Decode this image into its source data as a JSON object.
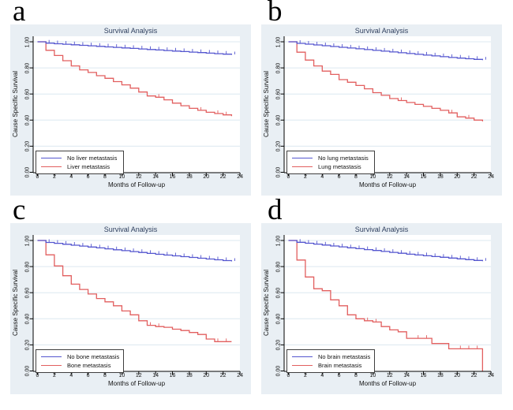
{
  "colors": {
    "panel_background": "#e9eff4",
    "plot_background": "#ffffff",
    "gridline": "#dce8f0",
    "axis": "#000000",
    "title_text": "#2e3f5e",
    "tick_text": "#111111",
    "blue_line": "#5456cf",
    "red_line": "#e25f5f",
    "legend_border": "#3f3f3f"
  },
  "chart_data": [
    {
      "type": "line",
      "panel_label": "a",
      "title": "Survival Analysis",
      "xlabel": "Months of Follow-up",
      "ylabel": "Cause Specific Survival",
      "xlim": [
        0,
        24
      ],
      "ylim": [
        0.0,
        1.0
      ],
      "x_ticks": [
        0,
        2,
        4,
        6,
        8,
        10,
        12,
        14,
        16,
        18,
        20,
        22,
        24
      ],
      "y_ticks": [
        "0.00",
        "0.20",
        "0.40",
        "0.60",
        "0.80",
        "1.00"
      ],
      "grid": "horizontal",
      "legend_position": "bottom-left",
      "series": [
        {
          "name": "No liver metastasis",
          "color": "blue",
          "censor": "all",
          "points": [
            [
              0,
              1.0
            ],
            [
              1,
              0.99
            ],
            [
              2,
              0.985
            ],
            [
              3,
              0.981
            ],
            [
              4,
              0.977
            ],
            [
              5,
              0.973
            ],
            [
              6,
              0.969
            ],
            [
              7,
              0.965
            ],
            [
              8,
              0.961
            ],
            [
              9,
              0.957
            ],
            [
              10,
              0.953
            ],
            [
              11,
              0.949
            ],
            [
              12,
              0.945
            ],
            [
              13,
              0.941
            ],
            [
              14,
              0.937
            ],
            [
              15,
              0.933
            ],
            [
              16,
              0.929
            ],
            [
              17,
              0.925
            ],
            [
              18,
              0.921
            ],
            [
              19,
              0.917
            ],
            [
              20,
              0.913
            ],
            [
              21,
              0.909
            ],
            [
              22,
              0.905
            ],
            [
              23,
              0.9
            ]
          ]
        },
        {
          "name": "Liver metastasis",
          "color": "red",
          "censor": [
            14,
            19,
            21,
            22
          ],
          "points": [
            [
              0,
              1.0
            ],
            [
              1,
              0.935
            ],
            [
              2,
              0.895
            ],
            [
              3,
              0.855
            ],
            [
              4,
              0.815
            ],
            [
              5,
              0.785
            ],
            [
              6,
              0.765
            ],
            [
              7,
              0.74
            ],
            [
              8,
              0.72
            ],
            [
              9,
              0.695
            ],
            [
              10,
              0.67
            ],
            [
              11,
              0.645
            ],
            [
              12,
              0.615
            ],
            [
              13,
              0.585
            ],
            [
              14,
              0.575
            ],
            [
              15,
              0.555
            ],
            [
              16,
              0.53
            ],
            [
              17,
              0.51
            ],
            [
              18,
              0.49
            ],
            [
              19,
              0.475
            ],
            [
              20,
              0.46
            ],
            [
              21,
              0.45
            ],
            [
              22,
              0.44
            ],
            [
              23,
              0.43
            ]
          ]
        }
      ]
    },
    {
      "type": "line",
      "panel_label": "b",
      "title": "Survival Analysis",
      "xlabel": "Months of Follow-up",
      "ylabel": "Cause Specific Survival",
      "xlim": [
        0,
        24
      ],
      "ylim": [
        0.0,
        1.0
      ],
      "x_ticks": [
        0,
        2,
        4,
        6,
        8,
        10,
        12,
        14,
        16,
        18,
        20,
        22,
        24
      ],
      "y_ticks": [
        "0.00",
        "0.20",
        "0.40",
        "0.60",
        "0.80",
        "1.00"
      ],
      "grid": "horizontal",
      "legend_position": "bottom-left",
      "series": [
        {
          "name": "No lung metastasis",
          "color": "blue",
          "censor": "all",
          "points": [
            [
              0,
              1.0
            ],
            [
              1,
              0.988
            ],
            [
              2,
              0.982
            ],
            [
              3,
              0.976
            ],
            [
              4,
              0.97
            ],
            [
              5,
              0.964
            ],
            [
              6,
              0.958
            ],
            [
              7,
              0.952
            ],
            [
              8,
              0.946
            ],
            [
              9,
              0.94
            ],
            [
              10,
              0.934
            ],
            [
              11,
              0.928
            ],
            [
              12,
              0.922
            ],
            [
              13,
              0.916
            ],
            [
              14,
              0.91
            ],
            [
              15,
              0.904
            ],
            [
              16,
              0.898
            ],
            [
              17,
              0.892
            ],
            [
              18,
              0.886
            ],
            [
              19,
              0.88
            ],
            [
              20,
              0.875
            ],
            [
              21,
              0.87
            ],
            [
              22,
              0.865
            ],
            [
              23,
              0.86
            ]
          ]
        },
        {
          "name": "Lung metastasis",
          "color": "red",
          "censor": [
            13,
            19,
            21
          ],
          "points": [
            [
              0,
              1.0
            ],
            [
              1,
              0.92
            ],
            [
              2,
              0.86
            ],
            [
              3,
              0.815
            ],
            [
              4,
              0.775
            ],
            [
              5,
              0.75
            ],
            [
              6,
              0.71
            ],
            [
              7,
              0.69
            ],
            [
              8,
              0.665
            ],
            [
              9,
              0.64
            ],
            [
              10,
              0.61
            ],
            [
              11,
              0.59
            ],
            [
              12,
              0.565
            ],
            [
              13,
              0.55
            ],
            [
              14,
              0.535
            ],
            [
              15,
              0.52
            ],
            [
              16,
              0.505
            ],
            [
              17,
              0.49
            ],
            [
              18,
              0.475
            ],
            [
              19,
              0.455
            ],
            [
              20,
              0.425
            ],
            [
              21,
              0.415
            ],
            [
              22,
              0.4
            ],
            [
              23,
              0.39
            ]
          ]
        }
      ]
    },
    {
      "type": "line",
      "panel_label": "c",
      "title": "Survival Analysis",
      "xlabel": "Months of Follow-up",
      "ylabel": "Cause Specific Survival",
      "xlim": [
        0,
        24
      ],
      "ylim": [
        0.0,
        1.0
      ],
      "x_ticks": [
        0,
        2,
        4,
        6,
        8,
        10,
        12,
        14,
        16,
        18,
        20,
        22,
        24
      ],
      "y_ticks": [
        "0.00",
        "0.20",
        "0.40",
        "0.60",
        "0.80",
        "1.00"
      ],
      "grid": "horizontal",
      "legend_position": "bottom-left",
      "series": [
        {
          "name": "No bone metastasis",
          "color": "blue",
          "censor": "all",
          "points": [
            [
              0,
              1.0
            ],
            [
              1,
              0.985
            ],
            [
              2,
              0.978
            ],
            [
              3,
              0.971
            ],
            [
              4,
              0.964
            ],
            [
              5,
              0.957
            ],
            [
              6,
              0.95
            ],
            [
              7,
              0.943
            ],
            [
              8,
              0.936
            ],
            [
              9,
              0.929
            ],
            [
              10,
              0.922
            ],
            [
              11,
              0.915
            ],
            [
              12,
              0.908
            ],
            [
              13,
              0.901
            ],
            [
              14,
              0.894
            ],
            [
              15,
              0.888
            ],
            [
              16,
              0.882
            ],
            [
              17,
              0.876
            ],
            [
              18,
              0.87
            ],
            [
              19,
              0.864
            ],
            [
              20,
              0.858
            ],
            [
              21,
              0.852
            ],
            [
              22,
              0.846
            ],
            [
              23,
              0.84
            ]
          ]
        },
        {
          "name": "Bone metastasis",
          "color": "red",
          "censor": [
            13,
            14,
            21,
            22
          ],
          "points": [
            [
              0,
              1.0
            ],
            [
              1,
              0.89
            ],
            [
              2,
              0.805
            ],
            [
              3,
              0.73
            ],
            [
              4,
              0.665
            ],
            [
              5,
              0.625
            ],
            [
              6,
              0.59
            ],
            [
              7,
              0.555
            ],
            [
              8,
              0.53
            ],
            [
              9,
              0.5
            ],
            [
              10,
              0.46
            ],
            [
              11,
              0.43
            ],
            [
              12,
              0.385
            ],
            [
              13,
              0.35
            ],
            [
              14,
              0.34
            ],
            [
              15,
              0.335
            ],
            [
              16,
              0.32
            ],
            [
              17,
              0.31
            ],
            [
              18,
              0.295
            ],
            [
              19,
              0.28
            ],
            [
              20,
              0.245
            ],
            [
              21,
              0.225
            ],
            [
              22,
              0.225
            ],
            [
              23,
              0.225
            ]
          ]
        }
      ]
    },
    {
      "type": "line",
      "panel_label": "d",
      "title": "Survival Analysis",
      "xlabel": "Months of Follow-up",
      "ylabel": "Cause Specific Survival",
      "xlim": [
        0,
        24
      ],
      "ylim": [
        0.0,
        1.0
      ],
      "x_ticks": [
        0,
        2,
        4,
        6,
        8,
        10,
        12,
        14,
        16,
        18,
        20,
        22,
        24
      ],
      "y_ticks": [
        "0.00",
        "0.20",
        "0.40",
        "0.60",
        "0.80",
        "1.00"
      ],
      "grid": "horizontal",
      "legend_position": "bottom-left",
      "series": [
        {
          "name": "No brain metastasis",
          "color": "blue",
          "censor": "all",
          "points": [
            [
              0,
              1.0
            ],
            [
              1,
              0.986
            ],
            [
              2,
              0.979
            ],
            [
              3,
              0.972
            ],
            [
              4,
              0.965
            ],
            [
              5,
              0.958
            ],
            [
              6,
              0.951
            ],
            [
              7,
              0.944
            ],
            [
              8,
              0.937
            ],
            [
              9,
              0.93
            ],
            [
              10,
              0.923
            ],
            [
              11,
              0.916
            ],
            [
              12,
              0.909
            ],
            [
              13,
              0.902
            ],
            [
              14,
              0.895
            ],
            [
              15,
              0.889
            ],
            [
              16,
              0.883
            ],
            [
              17,
              0.877
            ],
            [
              18,
              0.871
            ],
            [
              19,
              0.865
            ],
            [
              20,
              0.859
            ],
            [
              21,
              0.853
            ],
            [
              22,
              0.847
            ],
            [
              23,
              0.841
            ]
          ]
        },
        {
          "name": "Brain metastasis",
          "color": "red",
          "censor": [
            9,
            10,
            15,
            16,
            20,
            21,
            22
          ],
          "points": [
            [
              0,
              1.0
            ],
            [
              1,
              0.85
            ],
            [
              2,
              0.72
            ],
            [
              3,
              0.63
            ],
            [
              4,
              0.615
            ],
            [
              5,
              0.545
            ],
            [
              6,
              0.5
            ],
            [
              7,
              0.43
            ],
            [
              8,
              0.4
            ],
            [
              9,
              0.385
            ],
            [
              10,
              0.375
            ],
            [
              11,
              0.34
            ],
            [
              12,
              0.315
            ],
            [
              13,
              0.3
            ],
            [
              14,
              0.25
            ],
            [
              17,
              0.21
            ],
            [
              19,
              0.17
            ],
            [
              23,
              0.17
            ],
            [
              23,
              0.0
            ]
          ]
        }
      ]
    }
  ]
}
